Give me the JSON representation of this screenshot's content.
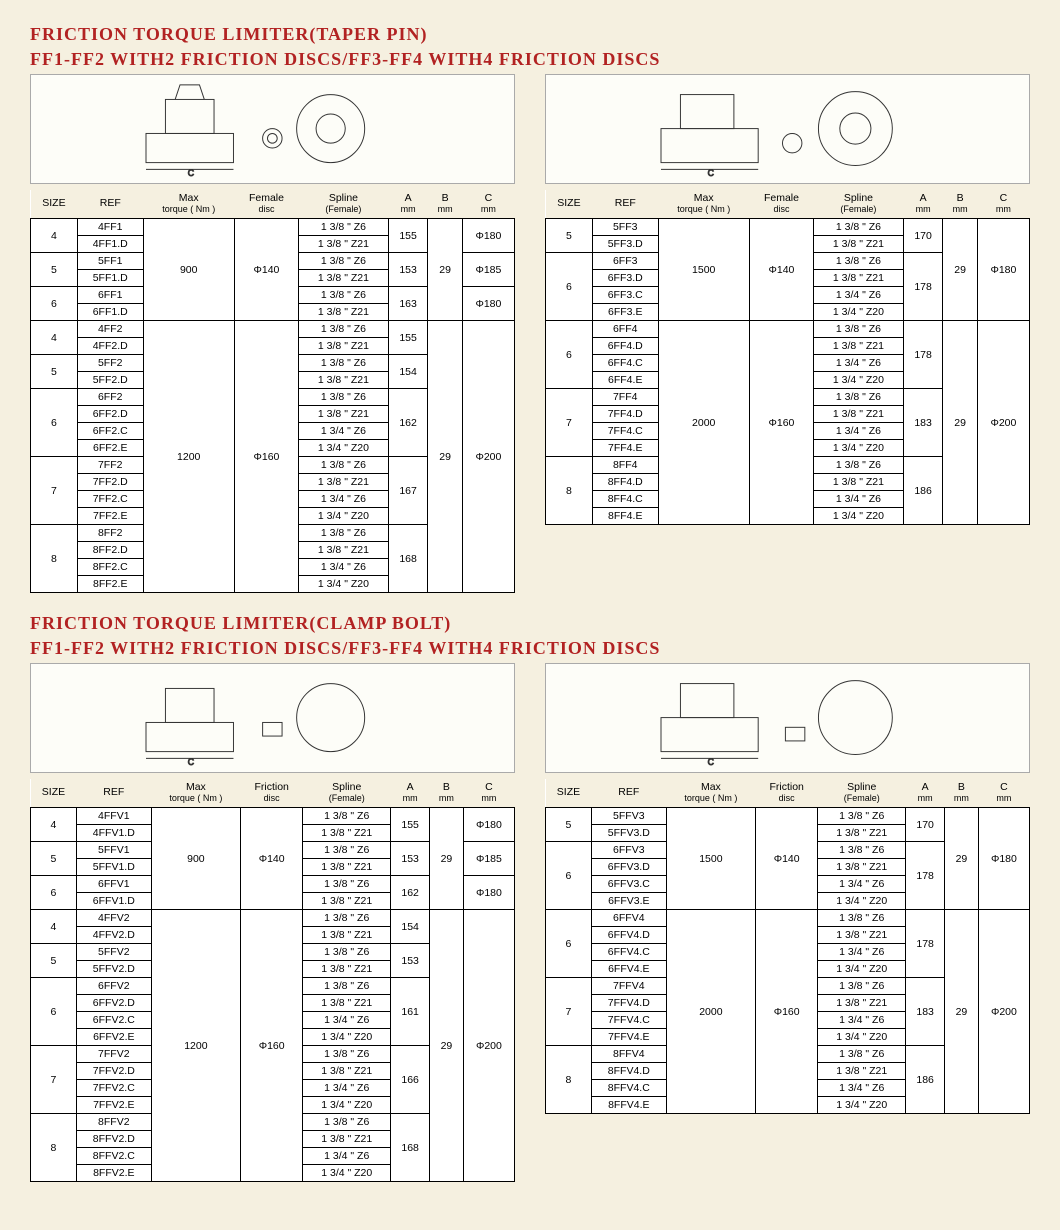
{
  "colors": {
    "heading": "#b22222",
    "page_bg": "#f5f0e0",
    "table_bg": "#ffffff",
    "border": "#000000"
  },
  "fonts": {
    "heading_family": "Times New Roman",
    "heading_size_pt": 14,
    "body_size_pt": 8
  },
  "h1a": "FRICTION TORQUE LIMITER(TAPER PIN)",
  "h1b": "FF1-FF2 WITH2 FRICTION DISCS/FF3-FF4 WITH4 FRICTION DISCS",
  "h2a": "FRICTION TORQUE LIMITER(CLAMP BOLT)",
  "h2b": "FF1-FF2 WITH2 FRICTION DISCS/FF3-FF4 WITH4 FRICTION DISCS",
  "cols_left": [
    "SIZE",
    "REF",
    "Max torque ( Nm )",
    "Female disc",
    "Spline (Female)",
    "A mm",
    "B mm",
    "C mm"
  ],
  "cols_left2": [
    "SIZE",
    "REF",
    "Max torque ( Nm )",
    "Friction disc",
    "Spline (Female)",
    "A mm",
    "B mm",
    "C mm"
  ],
  "t1": {
    "rows": [
      {
        "size": "4",
        "refs": [
          "4FF1",
          "4FF1.D"
        ],
        "splines": [
          "1 3/8 \" Z6",
          "1 3/8 \" Z21"
        ],
        "A": "155",
        "C": "Φ180"
      },
      {
        "size": "5",
        "refs": [
          "5FF1",
          "5FF1.D"
        ],
        "splines": [
          "1 3/8 \" Z6",
          "1 3/8 \" Z21"
        ],
        "A": "153",
        "C": "Φ185"
      },
      {
        "size": "6",
        "refs": [
          "6FF1",
          "6FF1.D"
        ],
        "splines": [
          "1 3/8 \" Z6",
          "1 3/8 \" Z21"
        ],
        "A": "163",
        "C": "Φ180"
      }
    ],
    "torque": "900",
    "disc": "Φ140",
    "B": "29",
    "rows2": [
      {
        "size": "4",
        "refs": [
          "4FF2",
          "4FF2.D"
        ],
        "splines": [
          "1 3/8 \" Z6",
          "1 3/8 \" Z21"
        ],
        "A": "155"
      },
      {
        "size": "5",
        "refs": [
          "5FF2",
          "5FF2.D"
        ],
        "splines": [
          "1 3/8 \" Z6",
          "1 3/8 \" Z21"
        ],
        "A": "154"
      },
      {
        "size": "6",
        "refs": [
          "6FF2",
          "6FF2.D",
          "6FF2.C",
          "6FF2.E"
        ],
        "splines": [
          "1 3/8 \" Z6",
          "1 3/8 \" Z21",
          "1 3/4 \" Z6",
          "1 3/4 \" Z20"
        ],
        "A": "162"
      },
      {
        "size": "7",
        "refs": [
          "7FF2",
          "7FF2.D",
          "7FF2.C",
          "7FF2.E"
        ],
        "splines": [
          "1 3/8 \" Z6",
          "1 3/8 \" Z21",
          "1 3/4 \" Z6",
          "1 3/4 \" Z20"
        ],
        "A": "167"
      },
      {
        "size": "8",
        "refs": [
          "8FF2",
          "8FF2.D",
          "8FF2.C",
          "8FF2.E"
        ],
        "splines": [
          "1 3/8 \" Z6",
          "1 3/8 \" Z21",
          "1 3/4 \" Z6",
          "1 3/4 \" Z20"
        ],
        "A": "168"
      }
    ],
    "torque2": "1200",
    "disc2": "Φ160",
    "B2": "29",
    "C2": "Φ200"
  },
  "t2": {
    "g1": {
      "torque": "1500",
      "disc": "Φ140",
      "B": "29",
      "C": "Φ180",
      "rows": [
        {
          "size": "5",
          "refs": [
            "5FF3",
            "5FF3.D"
          ],
          "splines": [
            "1 3/8 \" Z6",
            "1 3/8 \" Z21"
          ],
          "A": "170"
        },
        {
          "size": "6",
          "refs": [
            "6FF3",
            "6FF3.D",
            "6FF3.C",
            "6FF3.E"
          ],
          "splines": [
            "1 3/8 \" Z6",
            "1 3/8 \" Z21",
            "1 3/4 \" Z6",
            "1 3/4 \" Z20"
          ],
          "A": "178"
        }
      ]
    },
    "g2": {
      "torque": "2000",
      "disc": "Φ160",
      "B": "29",
      "C": "Φ200",
      "rows": [
        {
          "size": "6",
          "refs": [
            "6FF4",
            "6FF4.D",
            "6FF4.C",
            "6FF4.E"
          ],
          "splines": [
            "1 3/8 \" Z6",
            "1 3/8 \" Z21",
            "1 3/4 \" Z6",
            "1 3/4 \" Z20"
          ],
          "A": "178"
        },
        {
          "size": "7",
          "refs": [
            "7FF4",
            "7FF4.D",
            "7FF4.C",
            "7FF4.E"
          ],
          "splines": [
            "1 3/8 \" Z6",
            "1 3/8 \" Z21",
            "1 3/4 \" Z6",
            "1 3/4 \" Z20"
          ],
          "A": "183"
        },
        {
          "size": "8",
          "refs": [
            "8FF4",
            "8FF4.D",
            "8FF4.C",
            "8FF4.E"
          ],
          "splines": [
            "1 3/8 \" Z6",
            "1 3/8 \" Z21",
            "1 3/4 \" Z6",
            "1 3/4 \" Z20"
          ],
          "A": "186"
        }
      ]
    }
  },
  "t3": {
    "rows": [
      {
        "size": "4",
        "refs": [
          "4FFV1",
          "4FFV1.D"
        ],
        "splines": [
          "1 3/8 \" Z6",
          "1 3/8 \" Z21"
        ],
        "A": "155",
        "C": "Φ180"
      },
      {
        "size": "5",
        "refs": [
          "5FFV1",
          "5FFV1.D"
        ],
        "splines": [
          "1 3/8 \" Z6",
          "1 3/8 \" Z21"
        ],
        "A": "153",
        "C": "Φ185"
      },
      {
        "size": "6",
        "refs": [
          "6FFV1",
          "6FFV1.D"
        ],
        "splines": [
          "1 3/8 \" Z6",
          "1 3/8 \" Z21"
        ],
        "A": "162",
        "C": "Φ180"
      }
    ],
    "torque": "900",
    "disc": "Φ140",
    "B": "29",
    "rows2": [
      {
        "size": "4",
        "refs": [
          "4FFV2",
          "4FFV2.D"
        ],
        "splines": [
          "1 3/8 \" Z6",
          "1 3/8 \" Z21"
        ],
        "A": "154"
      },
      {
        "size": "5",
        "refs": [
          "5FFV2",
          "5FFV2.D"
        ],
        "splines": [
          "1 3/8 \" Z6",
          "1 3/8 \" Z21"
        ],
        "A": "153"
      },
      {
        "size": "6",
        "refs": [
          "6FFV2",
          "6FFV2.D",
          "6FFV2.C",
          "6FFV2.E"
        ],
        "splines": [
          "1 3/8 \" Z6",
          "1 3/8 \" Z21",
          "1 3/4 \" Z6",
          "1 3/4 \" Z20"
        ],
        "A": "161"
      },
      {
        "size": "7",
        "refs": [
          "7FFV2",
          "7FFV2.D",
          "7FFV2.C",
          "7FFV2.E"
        ],
        "splines": [
          "1 3/8 \" Z6",
          "1 3/8 \" Z21",
          "1 3/4 \" Z6",
          "1 3/4 \" Z20"
        ],
        "A": "166"
      },
      {
        "size": "8",
        "refs": [
          "8FFV2",
          "8FFV2.D",
          "8FFV2.C",
          "8FFV2.E"
        ],
        "splines": [
          "1 3/8 \" Z6",
          "1 3/8 \" Z21",
          "1 3/4 \" Z6",
          "1 3/4 \" Z20"
        ],
        "A": "168"
      }
    ],
    "torque2": "1200",
    "disc2": "Φ160",
    "B2": "29",
    "C2": "Φ200"
  },
  "t4": {
    "g1": {
      "torque": "1500",
      "disc": "Φ140",
      "B": "29",
      "C": "Φ180",
      "rows": [
        {
          "size": "5",
          "refs": [
            "5FFV3",
            "5FFV3.D"
          ],
          "splines": [
            "1 3/8 \" Z6",
            "1 3/8 \" Z21"
          ],
          "A": "170"
        },
        {
          "size": "6",
          "refs": [
            "6FFV3",
            "6FFV3.D",
            "6FFV3.C",
            "6FFV3.E"
          ],
          "splines": [
            "1 3/8 \" Z6",
            "1 3/8 \" Z21",
            "1 3/4 \" Z6",
            "1 3/4 \" Z20"
          ],
          "A": "178"
        }
      ]
    },
    "g2": {
      "torque": "2000",
      "disc": "Φ160",
      "B": "29",
      "C": "Φ200",
      "rows": [
        {
          "size": "6",
          "refs": [
            "6FFV4",
            "6FFV4.D",
            "6FFV4.C",
            "6FFV4.E"
          ],
          "splines": [
            "1 3/8 \" Z6",
            "1 3/8 \" Z21",
            "1 3/4 \" Z6",
            "1 3/4 \" Z20"
          ],
          "A": "178"
        },
        {
          "size": "7",
          "refs": [
            "7FFV4",
            "7FFV4.D",
            "7FFV4.C",
            "7FFV4.E"
          ],
          "splines": [
            "1 3/8 \" Z6",
            "1 3/8 \" Z21",
            "1 3/4 \" Z6",
            "1 3/4 \" Z20"
          ],
          "A": "183"
        },
        {
          "size": "8",
          "refs": [
            "8FFV4",
            "8FFV4.D",
            "8FFV4.C",
            "8FFV4.E"
          ],
          "splines": [
            "1 3/8 \" Z6",
            "1 3/8 \" Z21",
            "1 3/4 \" Z6",
            "1 3/4 \" Z20"
          ],
          "A": "186"
        }
      ]
    }
  }
}
